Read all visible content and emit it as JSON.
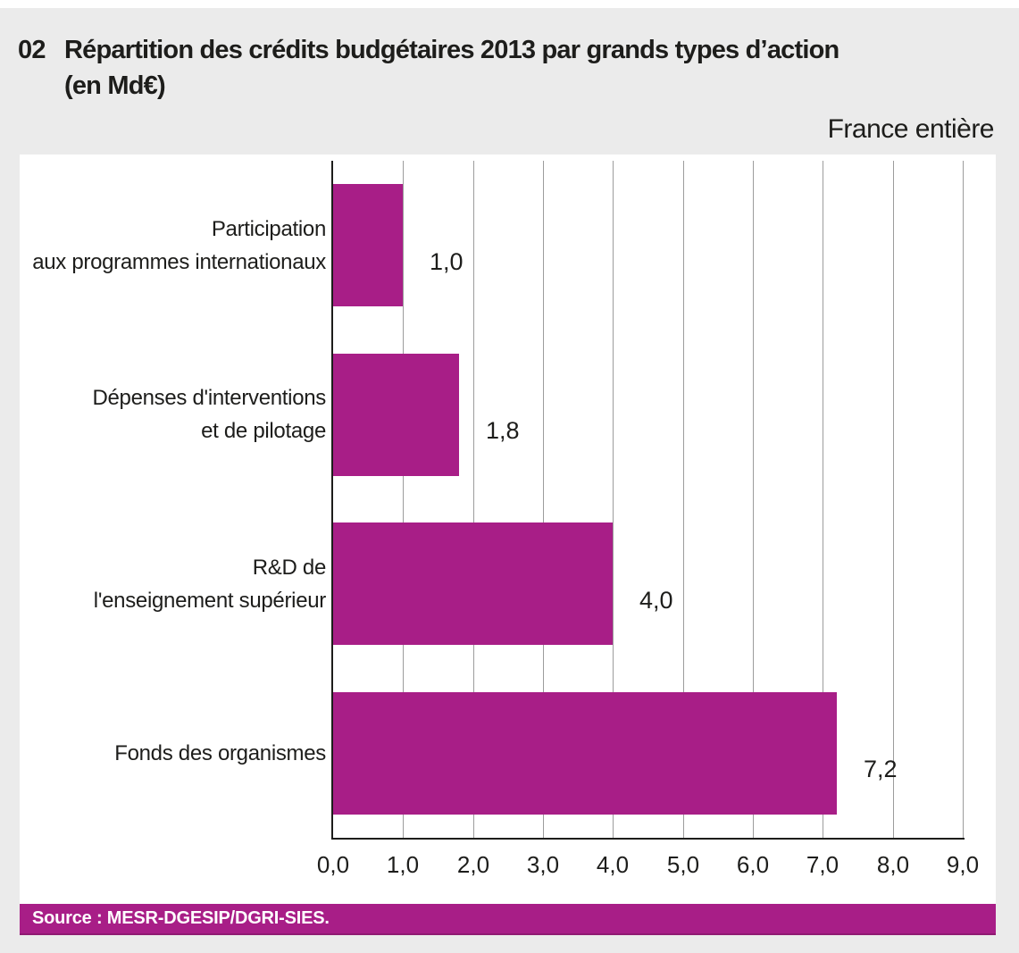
{
  "header": {
    "figure_number": "02",
    "title_line1": "Répartition des crédits budgétaires 2013 par grands types d’action",
    "title_line2": "(en Md€)",
    "region_note": "France entière"
  },
  "footer": {
    "source": "Source : MESR-DGESIP/DGRI-SIES."
  },
  "colors": {
    "accent_magenta": "#a81e87",
    "page_background": "#ebebeb",
    "panel_background": "#ffffff",
    "grid_line": "#9c9c9c",
    "axis_line": "#1d1d1b",
    "text": "#1d1d1b",
    "source_text": "#ffffff"
  },
  "chart_data": {
    "type": "bar",
    "orientation": "horizontal",
    "title": "Répartition des crédits budgétaires 2013 par grands types d’action (en Md€)",
    "unit": "Md€",
    "region": "France entière",
    "categories": [
      "Participation aux programmes internationaux",
      "Dépenses d'interventions et de pilotage",
      "R&D de l'enseignement supérieur",
      "Fonds des organismes"
    ],
    "category_label_lines": [
      [
        "Participation",
        "aux programmes internationaux"
      ],
      [
        "Dépenses d'interventions",
        "et de pilotage"
      ],
      [
        "R&D de",
        "l'enseignement supérieur"
      ],
      [
        "Fonds des organismes"
      ]
    ],
    "values": [
      1.0,
      1.8,
      4.0,
      7.2
    ],
    "value_labels": [
      "1,0",
      "1,8",
      "4,0",
      "7,2"
    ],
    "xlim": [
      0,
      9
    ],
    "xticks": [
      0,
      1,
      2,
      3,
      4,
      5,
      6,
      7,
      8,
      9
    ],
    "xtick_labels": [
      "0,0",
      "1,0",
      "2,0",
      "3,0",
      "4,0",
      "5,0",
      "6,0",
      "7,0",
      "8,0",
      "9,0"
    ],
    "grid": "vertical",
    "legend": "none",
    "bar_color": "#a81e87"
  }
}
